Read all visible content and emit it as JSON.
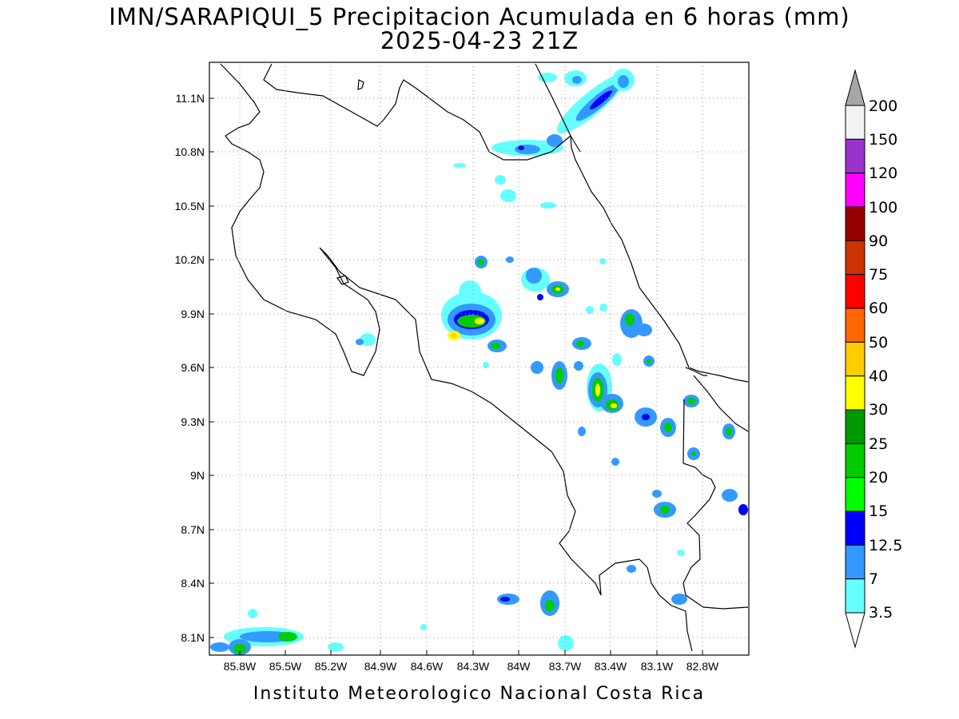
{
  "title": {
    "line1": "IMN/SARAPIQUI_5 Precipitacion Acumulada en 6 horas (mm)",
    "line2": "2025-04-23 21Z"
  },
  "footer": "Instituto Meteorologico Nacional Costa Rica",
  "axes": {
    "lat_labels": [
      "11.1N",
      "10.8N",
      "10.5N",
      "10.2N",
      "9.9N",
      "9.6N",
      "9.3N",
      "9N",
      "8.7N",
      "8.4N",
      "8.1N"
    ],
    "lon_labels": [
      "85.8W",
      "85.5W",
      "85.2W",
      "84.9W",
      "84.6W",
      "84.3W",
      "84W",
      "83.7W",
      "83.4W",
      "83.1W",
      "82.8W"
    ],
    "grid": "dotted"
  },
  "colorbar": {
    "labels": [
      "200",
      "150",
      "120",
      "100",
      "90",
      "75",
      "60",
      "50",
      "40",
      "30",
      "25",
      "20",
      "15",
      "12.5",
      "7",
      "3.5"
    ],
    "colors": [
      "#f2f2f2",
      "#9a33cc",
      "#ff00ff",
      "#990000",
      "#cc3300",
      "#ff0000",
      "#ff6600",
      "#ffcc00",
      "#ffff00",
      "#009900",
      "#00cc00",
      "#00ff00",
      "#0000ff",
      "#3399ff",
      "#66ffff"
    ],
    "upper_arrow_color": "#a6a6a6",
    "lower_arrow_color": "#ffffff"
  }
}
